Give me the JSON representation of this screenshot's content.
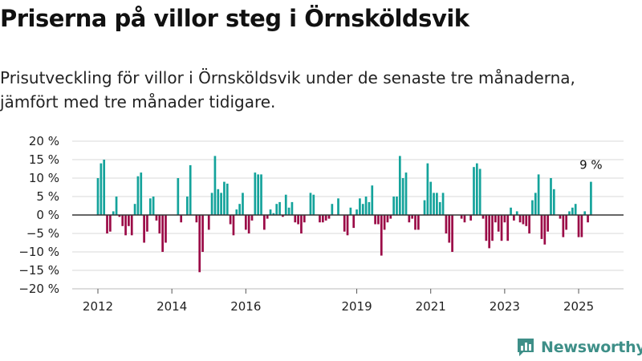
{
  "header": {
    "title": "Priserna på villor steg i Örnsköldsvik",
    "subtitle": "Prisutveckling för villor i Örnsköldsvik under de senaste tre månaderna, jämfört med tre månader tidigare."
  },
  "brand": {
    "name": "Newsworthy",
    "icon": "bar-chart-icon",
    "color": "#3e8f88"
  },
  "colors": {
    "positive": "#14a39b",
    "negative": "#9b0b47",
    "grid": "#d9d9d9",
    "zero_line": "#333333"
  },
  "chart_data": {
    "type": "bar",
    "title": "",
    "xlabel": "",
    "ylabel": "",
    "x_start": "2012-01",
    "x_step": "month",
    "ylim": [
      -20,
      20
    ],
    "y_ticks": [
      20,
      15,
      10,
      5,
      0,
      -5,
      -10,
      -15,
      -20
    ],
    "y_tick_labels": [
      "20 %",
      "15 %",
      "10 %",
      "5 %",
      "0 %",
      "−5 %",
      "−10 %",
      "−15 %",
      "−20 %"
    ],
    "x_ticks": [
      "2012",
      "2014",
      "2016",
      "2019",
      "2021",
      "2023",
      "2025"
    ],
    "x_tick_positions": [
      "2012-01",
      "2014-01",
      "2016-01",
      "2019-01",
      "2021-01",
      "2023-01",
      "2025-01"
    ],
    "grid": true,
    "legend": "none",
    "annotation": {
      "label": "9 %",
      "at": "2025-05",
      "value": 9
    },
    "values": [
      10,
      14,
      15,
      -5,
      -4.5,
      1,
      5,
      -0.5,
      -3,
      -5.5,
      -3,
      -5.5,
      3,
      10.5,
      11.5,
      -7.5,
      -4.5,
      4.5,
      5,
      -1.5,
      -5,
      -10,
      -7.5,
      0,
      0,
      0,
      10,
      -2,
      0,
      5,
      13.5,
      0,
      -2,
      -15.5,
      -10,
      0,
      -4,
      6,
      16,
      7,
      6,
      9,
      8.5,
      -2.5,
      -5.5,
      1.5,
      3,
      6,
      -4,
      -5,
      -1.5,
      11.5,
      11,
      11,
      -4,
      -1,
      1.5,
      0.5,
      3,
      3.5,
      -0.5,
      5.5,
      2,
      3.5,
      -2,
      -2.5,
      -5,
      -2,
      0,
      6,
      5.5,
      0,
      -2,
      -2,
      -1.5,
      -1,
      3,
      0,
      4.5,
      0,
      -4.5,
      -5.5,
      2,
      -3.5,
      1.5,
      4.5,
      3,
      5,
      3.5,
      8,
      -2.5,
      -2.5,
      -11,
      -4,
      -2,
      -1,
      5,
      5,
      16,
      10,
      11.5,
      -2,
      -1,
      -4,
      -4,
      0,
      4,
      14,
      9,
      6,
      6,
      3.5,
      6,
      -5,
      -7.5,
      -10,
      0,
      0,
      -1,
      -2,
      0,
      -1.5,
      13,
      14,
      12.5,
      -1,
      -7,
      -9,
      -7,
      -2,
      -4.5,
      -7,
      -2,
      -7,
      2,
      -1.5,
      1,
      -2,
      -2.5,
      -3,
      -5,
      4,
      6,
      11,
      -6.5,
      -8,
      -4.5,
      10,
      7,
      0,
      -1,
      -6,
      -4,
      1,
      2,
      3,
      -6,
      -6,
      1,
      -2,
      9
    ]
  }
}
